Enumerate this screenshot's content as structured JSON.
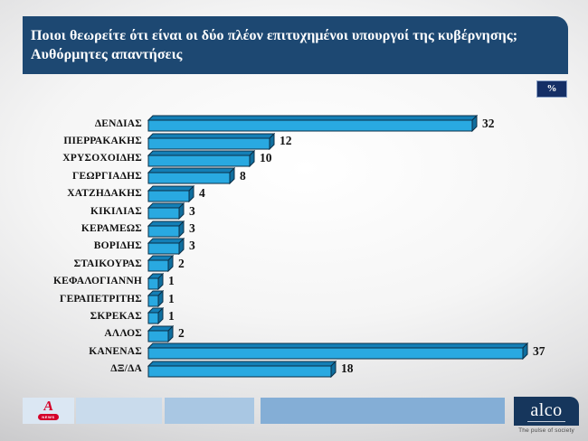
{
  "title": {
    "line1": "Ποιοι θεωρείτε ότι είναι οι δύο πλέον επιτυχημένοι υπουργοί της κυβέρνησης;",
    "line2": "Αυθόρμητες απαντήσεις"
  },
  "unit_badge": "%",
  "chart_data": {
    "type": "bar",
    "orientation": "horizontal",
    "unit": "%",
    "title": "Ποιοι θεωρείτε ότι είναι οι δύο πλέον επιτυχημένοι υπουργοί της κυβέρνησης; Αυθόρμητες απαντήσεις",
    "categories": [
      "ΔΕΝΔΙΑΣ",
      "ΠΙΕΡΡΑΚΑΚΗΣ",
      "ΧΡΥΣΟΧΟΙΔΗΣ",
      "ΓΕΩΡΓΙΑΔΗΣ",
      "ΧΑΤΖΗΔΑΚΗΣ",
      "ΚΙΚΙΛΙΑΣ",
      "ΚΕΡΑΜΕΩΣ",
      "ΒΟΡΙΔΗΣ",
      "ΣΤΑΙΚΟΥΡΑΣ",
      "ΚΕΦΑΛΟΓΙΑΝΝΗ",
      "ΓΕΡΑΠΕΤΡΙΤΗΣ",
      "ΣΚΡΕΚΑΣ",
      "ΑΛΛΟΣ",
      "ΚΑΝΕΝΑΣ",
      "ΔΞ/ΔΑ"
    ],
    "values": [
      32,
      12,
      10,
      8,
      4,
      3,
      3,
      3,
      2,
      1,
      1,
      1,
      2,
      37,
      18
    ],
    "xlim": [
      0,
      40
    ],
    "grid": false,
    "legend": false,
    "data_labels": true,
    "bar_style": "3d",
    "bar_colors": {
      "face": "#29a9e1",
      "top": "#147fb6",
      "side": "#0f6e9e",
      "outline": "#0c2f47"
    }
  },
  "colors": {
    "banner_bg": "#1d4872",
    "badge_bg": "#152f66",
    "label_text": "#111111"
  },
  "footer": {
    "alpha_logo": {
      "letter": "A",
      "news_label": "NEWS",
      "color": "#d40029"
    },
    "block_colors": [
      "#dbe7f3",
      "#c9dbec",
      "#a9c7e3",
      "#84aed6"
    ],
    "alco_logo": {
      "name": "alco",
      "tagline": "The pulse of society",
      "bg": "#16365c"
    }
  }
}
